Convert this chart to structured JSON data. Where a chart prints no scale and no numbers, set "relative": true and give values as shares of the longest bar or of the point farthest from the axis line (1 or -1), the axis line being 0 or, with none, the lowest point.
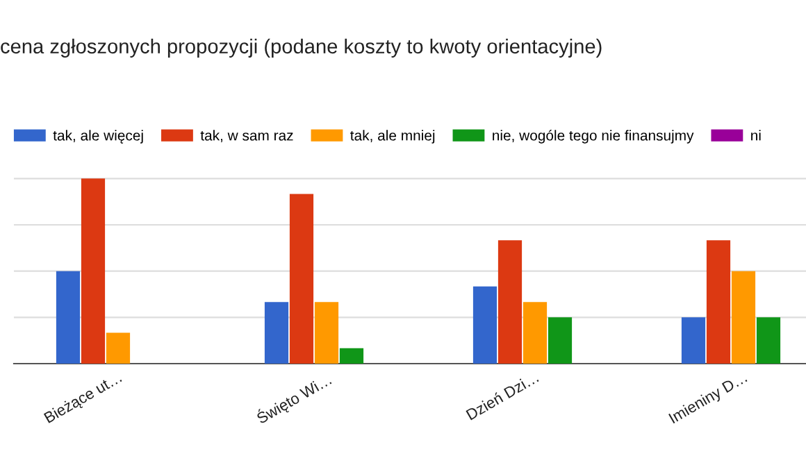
{
  "chart_data": {
    "type": "bar",
    "title": "cena zgłoszonych propozycji (podane koszty to kwoty orientacyjne)",
    "categories": [
      "Bieżące ut…",
      "Święto Wi…",
      "Dzień Dzi…",
      "Imieniny D…"
    ],
    "relative": true,
    "grid": "y",
    "legend": "top",
    "tick_labels": "x",
    "series": [
      {
        "name": "tak, ale więcej",
        "color": "#3366cc",
        "values": [
          0.5,
          0.333,
          0.417,
          0.25
        ]
      },
      {
        "name": "tak, w sam raz",
        "color": "#dc3912",
        "values": [
          1,
          0.917,
          0.667,
          0.667
        ]
      },
      {
        "name": "tak, ale mniej",
        "color": "#ff9900",
        "values": [
          0.167,
          0.333,
          0.333,
          0.5
        ]
      },
      {
        "name": "nie, wogóle tego nie finansujmy",
        "color": "#109618",
        "values": [
          0,
          0.083,
          0.25,
          0.25
        ]
      },
      {
        "name": "ni",
        "color": "#990099",
        "values": [
          0,
          0,
          0,
          0
        ]
      }
    ]
  }
}
